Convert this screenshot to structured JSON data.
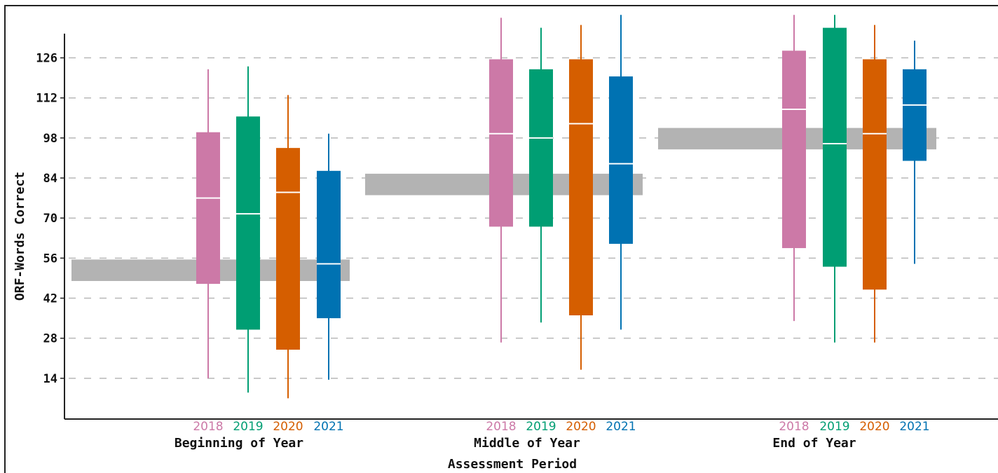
{
  "chart_data": {
    "type": "boxplot",
    "xlabel": "Assessment Period",
    "ylabel": "ORF-Words Correct",
    "ylim": [
      0,
      134
    ],
    "yticks": [
      14,
      28,
      42,
      56,
      70,
      84,
      98,
      112,
      126
    ],
    "grid": "horizontal-dashed",
    "years": [
      "2018",
      "2019",
      "2020",
      "2021"
    ],
    "year_colors": [
      "#cc79a7",
      "#009e73",
      "#d55e00",
      "#0072b2"
    ],
    "band_color": "#b3b3b3",
    "periods": [
      {
        "label": "Beginning of Year",
        "benchmark_band": [
          48,
          55.5
        ],
        "boxes": [
          {
            "year": "2018",
            "whisker_low": 14,
            "q1": 47,
            "median": 77,
            "q3": 100,
            "whisker_high": 122
          },
          {
            "year": "2019",
            "whisker_low": 9,
            "q1": 31,
            "median": 71.5,
            "q3": 105.5,
            "whisker_high": 123
          },
          {
            "year": "2020",
            "whisker_low": 7,
            "q1": 24,
            "median": 79,
            "q3": 94.5,
            "whisker_high": 113
          },
          {
            "year": "2021",
            "whisker_low": 13.5,
            "q1": 35,
            "median": 54,
            "q3": 86.5,
            "whisker_high": 99.5
          }
        ]
      },
      {
        "label": "Middle of Year",
        "benchmark_band": [
          78,
          85.5
        ],
        "boxes": [
          {
            "year": "2018",
            "whisker_low": 26.5,
            "q1": 67,
            "median": 99.5,
            "q3": 125.5,
            "whisker_high": 140
          },
          {
            "year": "2019",
            "whisker_low": 33.5,
            "q1": 67,
            "median": 98,
            "q3": 122,
            "whisker_high": 136.5
          },
          {
            "year": "2020",
            "whisker_low": 17,
            "q1": 36,
            "median": 103,
            "q3": 125.5,
            "whisker_high": 137.5
          },
          {
            "year": "2021",
            "whisker_low": 31,
            "q1": 61,
            "median": 89,
            "q3": 119.5,
            "whisker_high": 141
          }
        ]
      },
      {
        "label": "End of Year",
        "benchmark_band": [
          94,
          101.5
        ],
        "boxes": [
          {
            "year": "2018",
            "whisker_low": 34,
            "q1": 59.5,
            "median": 108,
            "q3": 128.5,
            "whisker_high": 141
          },
          {
            "year": "2019",
            "whisker_low": 26.5,
            "q1": 53,
            "median": 96,
            "q3": 136.5,
            "whisker_high": 141
          },
          {
            "year": "2020",
            "whisker_low": 26.5,
            "q1": 45,
            "median": 99.5,
            "q3": 125.5,
            "whisker_high": 137.5
          },
          {
            "year": "2021",
            "whisker_low": 54,
            "q1": 90,
            "median": 109.5,
            "q3": 122,
            "whisker_high": 132
          }
        ]
      }
    ]
  }
}
